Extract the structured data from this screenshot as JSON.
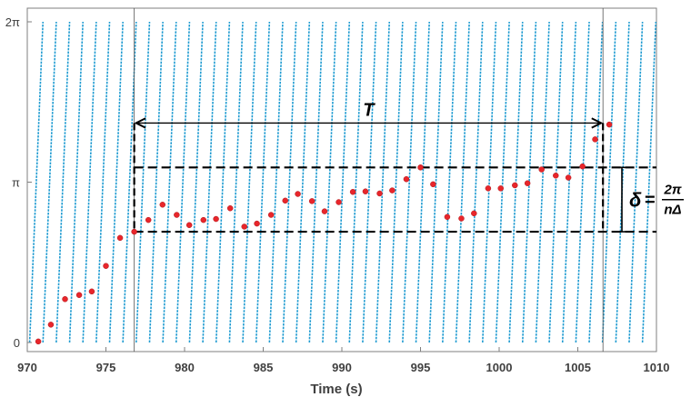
{
  "chart_data": {
    "type": "scatter",
    "title": "",
    "xlabel": "Time (s)",
    "ylabel": "",
    "xlim": [
      970,
      1010
    ],
    "ylim_labels": [
      "0",
      "π",
      "2π"
    ],
    "ylim": [
      0,
      6.2832
    ],
    "xticks": [
      970,
      975,
      980,
      985,
      990,
      995,
      1000,
      1005,
      1010
    ],
    "yticks": [
      {
        "value": 0,
        "label": "0"
      },
      {
        "value": 3.1416,
        "label": "π"
      },
      {
        "value": 6.2832,
        "label": "2π"
      }
    ],
    "grid": false,
    "colors": {
      "sawtooth": "#1f9bd1",
      "points": "#e8262b",
      "annotation": "#000000",
      "axis": "#7f7f7f"
    },
    "series": [
      {
        "type": "sawtooth",
        "period_s": 0.847,
        "x_start": 970.15,
        "x_end": 1010.0,
        "y_range": [
          0,
          6.2832
        ]
      },
      {
        "type": "scatter",
        "points": [
          [
            970.7,
            0.02
          ],
          [
            971.5,
            0.35
          ],
          [
            972.4,
            0.85
          ],
          [
            973.3,
            0.93
          ],
          [
            974.1,
            1.0
          ],
          [
            975.0,
            1.5
          ],
          [
            975.9,
            2.05
          ],
          [
            976.8,
            2.17
          ],
          [
            977.7,
            2.4
          ],
          [
            978.6,
            2.7
          ],
          [
            979.5,
            2.5
          ],
          [
            980.3,
            2.3
          ],
          [
            981.2,
            2.4
          ],
          [
            982.0,
            2.42
          ],
          [
            982.9,
            2.63
          ],
          [
            983.8,
            2.27
          ],
          [
            984.6,
            2.33
          ],
          [
            985.5,
            2.5
          ],
          [
            986.4,
            2.78
          ],
          [
            987.2,
            2.91
          ],
          [
            988.1,
            2.77
          ],
          [
            988.9,
            2.57
          ],
          [
            989.8,
            2.75
          ],
          [
            990.7,
            2.95
          ],
          [
            991.5,
            2.96
          ],
          [
            992.4,
            2.92
          ],
          [
            993.2,
            2.98
          ],
          [
            994.1,
            3.2
          ],
          [
            995.0,
            3.43
          ],
          [
            995.8,
            3.1
          ],
          [
            996.7,
            2.46
          ],
          [
            997.6,
            2.43
          ],
          [
            998.4,
            2.53
          ],
          [
            999.3,
            3.02
          ],
          [
            1000.1,
            3.02
          ],
          [
            1001.0,
            3.08
          ],
          [
            1001.8,
            3.12
          ],
          [
            1002.7,
            3.39
          ],
          [
            1003.6,
            3.27
          ],
          [
            1004.4,
            3.23
          ],
          [
            1005.3,
            3.45
          ],
          [
            1006.1,
            3.98
          ],
          [
            1007.0,
            4.27
          ]
        ]
      }
    ],
    "annotations": {
      "period_label": "T",
      "delta_label": "δ",
      "delta_equals": "=",
      "delta_numerator": "2π",
      "delta_denominator": "nΔ",
      "period_start": 976.8,
      "period_end": 1006.6,
      "band_low": 2.17,
      "band_high": 3.43,
      "period_arrow_y": 4.3
    }
  }
}
